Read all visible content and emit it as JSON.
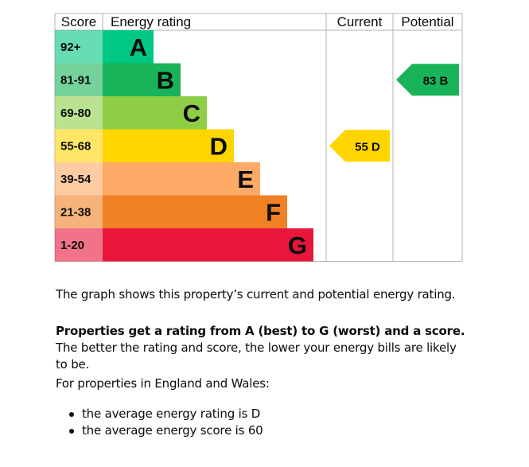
{
  "chart_data": {
    "type": "bar",
    "headers": {
      "score": "Score",
      "rating": "Energy rating",
      "current": "Current",
      "potential": "Potential"
    },
    "bands": [
      {
        "letter": "A",
        "range": "92+",
        "color": "#00c781"
      },
      {
        "letter": "B",
        "range": "81-91",
        "color": "#19b459"
      },
      {
        "letter": "C",
        "range": "69-80",
        "color": "#8dce46"
      },
      {
        "letter": "D",
        "range": "55-68",
        "color": "#ffd500"
      },
      {
        "letter": "E",
        "range": "39-54",
        "color": "#fcaa65"
      },
      {
        "letter": "F",
        "range": "21-38",
        "color": "#ef8023"
      },
      {
        "letter": "G",
        "range": "1-20",
        "color": "#e9153b"
      }
    ],
    "current": {
      "score": 55,
      "band": "D",
      "label": "55  D",
      "color": "#ffd500"
    },
    "potential": {
      "score": 83,
      "band": "B",
      "label": "83  B",
      "color": "#19b459"
    }
  },
  "text": {
    "intro": "The graph shows this property’s current and potential energy rating.",
    "rating_bold": "Properties get a rating from A (best) to G (worst) and a score.",
    "rating_rest": " The better the rating and score, the lower your energy bills are likely to be.",
    "region": "For properties in England and Wales:",
    "bullets": [
      "the average energy rating is D",
      "the average energy score is 60"
    ]
  }
}
